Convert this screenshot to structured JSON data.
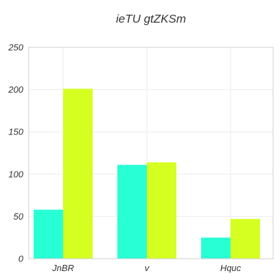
{
  "chart_data": {
    "type": "bar",
    "title": "ieTU gtZKSm",
    "xlabel": "",
    "ylabel": "",
    "categories": [
      "JnBR",
      "v",
      "Hquc"
    ],
    "series": [
      {
        "values": [
          58,
          111,
          25
        ]
      },
      {
        "values": [
          201,
          114,
          47
        ]
      }
    ],
    "colors": [
      "#29ffd4",
      "#d4ff21"
    ],
    "ylim": [
      0,
      250
    ],
    "yticks": [
      0,
      50,
      100,
      150,
      200,
      250
    ],
    "grid": true,
    "legend": "none"
  }
}
